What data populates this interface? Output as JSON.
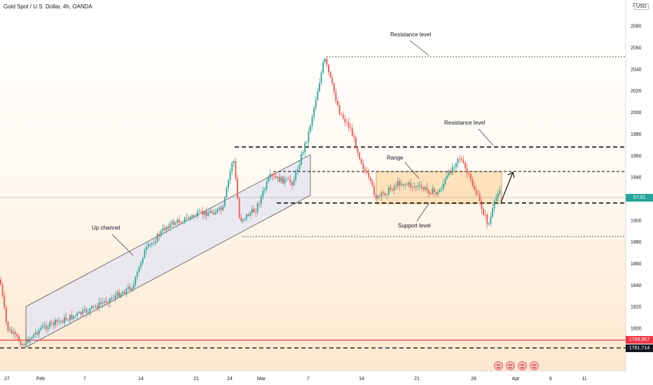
{
  "header": {
    "title": "Gold Spot / U.S. Dollar, 4h, OANDA",
    "currency": "USD"
  },
  "price_scale": {
    "top_partial": "21",
    "top_partial_right": "20"
  },
  "tags": {
    "current": "57:01",
    "level_red": "1789.857",
    "level_black": "1781.714"
  },
  "annotations": {
    "resistance_upper": "Resistance level",
    "resistance_lower": "Resistance level",
    "range": "Range",
    "support": "Support level",
    "up_channel": "Up channel"
  },
  "colors": {
    "up_candle": "#26a69a",
    "down_candle": "#ef5350",
    "channel_fill": "#e6e6f0",
    "range_fill": "#fcd9a8",
    "red_line": "#f23645",
    "dash_line": "#000000"
  },
  "chart_data": {
    "type": "candlestick",
    "title": "Gold Spot / U.S. Dollar, 4h, OANDA",
    "x_ticks": [
      "27",
      "Feb",
      "7",
      "14",
      "21",
      "24",
      "Mar",
      "7",
      "14",
      "21",
      "28",
      "Apr",
      "6",
      "11"
    ],
    "y_ticks": [
      1800,
      1820,
      1840,
      1860,
      1880,
      1900,
      1920,
      1940,
      1960,
      1980,
      2000,
      2020,
      2040,
      2060,
      2080
    ],
    "ylim": [
      1776,
      2094
    ],
    "price_series_approx": [
      {
        "date": "Jan 24",
        "price": 1845
      },
      {
        "date": "Jan 27",
        "price": 1800
      },
      {
        "date": "Jan 28",
        "price": 1785
      },
      {
        "date": "Feb 1",
        "price": 1800
      },
      {
        "date": "Feb 7",
        "price": 1815
      },
      {
        "date": "Feb 11",
        "price": 1830
      },
      {
        "date": "Feb 14",
        "price": 1840
      },
      {
        "date": "Feb 15",
        "price": 1870
      },
      {
        "date": "Feb 18",
        "price": 1895
      },
      {
        "date": "Feb 21",
        "price": 1905
      },
      {
        "date": "Feb 23",
        "price": 1910
      },
      {
        "date": "Feb 24",
        "price": 1960
      },
      {
        "date": "Feb 25",
        "price": 1900
      },
      {
        "date": "Feb 28",
        "price": 1910
      },
      {
        "date": "Mar 1",
        "price": 1940
      },
      {
        "date": "Mar 4",
        "price": 1935
      },
      {
        "date": "Mar 6",
        "price": 1980
      },
      {
        "date": "Mar 8",
        "price": 2050
      },
      {
        "date": "Mar 10",
        "price": 2000
      },
      {
        "date": "Mar 12",
        "price": 1985
      },
      {
        "date": "Mar 14",
        "price": 1950
      },
      {
        "date": "Mar 15",
        "price": 1920
      },
      {
        "date": "Mar 18",
        "price": 1935
      },
      {
        "date": "Mar 21",
        "price": 1930
      },
      {
        "date": "Mar 23",
        "price": 1925
      },
      {
        "date": "Mar 25",
        "price": 1960
      },
      {
        "date": "Mar 28",
        "price": 1925
      },
      {
        "date": "Mar 29",
        "price": 1895
      },
      {
        "date": "Mar 31",
        "price": 1930
      }
    ],
    "levels": [
      {
        "name": "Resistance level",
        "price": 2052,
        "style": "dotted"
      },
      {
        "name": "Resistance level",
        "price": 1968,
        "style": "dashed"
      },
      {
        "name": "Range top",
        "price": 1945,
        "style": "dashed"
      },
      {
        "name": "Support level",
        "price": 1917,
        "style": "dashed"
      },
      {
        "price": 1885,
        "style": "dotted"
      },
      {
        "price": 1789.857,
        "style": "solid-red"
      },
      {
        "price": 1781.714,
        "style": "dashed"
      }
    ],
    "range_box": {
      "date_from": "Mar 14",
      "date_to": "Mar 31",
      "price_low": 1916,
      "price_high": 1945
    },
    "up_channel": {
      "lower": [
        {
          "date": "Jan 28",
          "price": 1783
        },
        {
          "date": "Mar 7",
          "price": 1920
        }
      ],
      "upper": [
        {
          "date": "Jan 28",
          "price": 1820
        },
        {
          "date": "Mar 7",
          "price": 1962
        }
      ]
    },
    "grid": false,
    "legend": "none"
  }
}
